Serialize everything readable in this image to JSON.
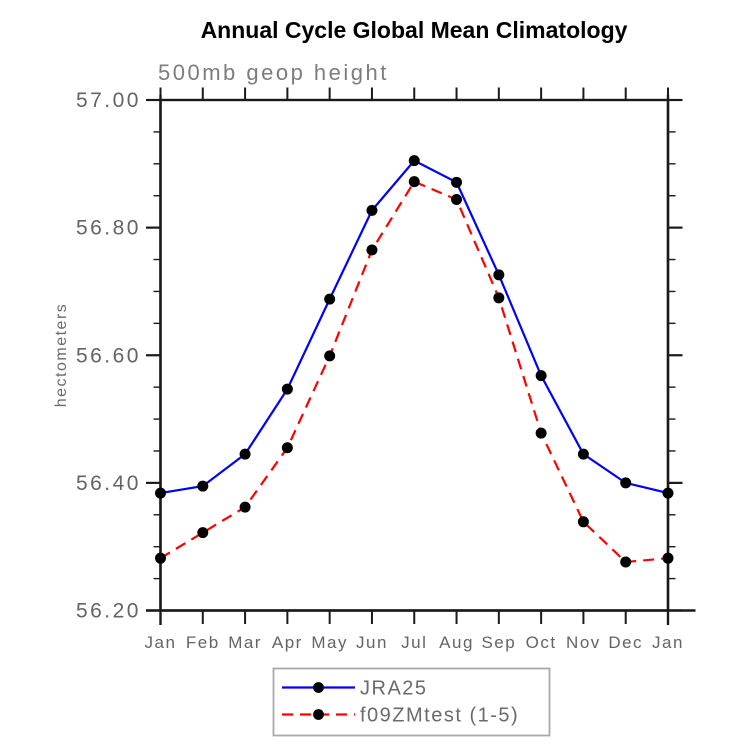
{
  "title": "Annual Cycle Global Mean Climatology",
  "subtitle": "500mb geop height",
  "chart_data": {
    "type": "line",
    "categories": [
      "Jan",
      "Feb",
      "Mar",
      "Apr",
      "May",
      "Jun",
      "Jul",
      "Aug",
      "Sep",
      "Oct",
      "Nov",
      "Dec",
      "Jan"
    ],
    "xlabel": "",
    "ylabel": "hectometers",
    "ylim": [
      56.2,
      57.0
    ],
    "ytick_major_values": [
      57.0,
      56.8,
      56.6,
      56.4,
      56.2
    ],
    "ytick_major_labels": [
      "57.00",
      "56.80",
      "56.60",
      "56.40",
      "56.20"
    ],
    "ytick_minor_step": 0.05,
    "grid": false,
    "legend_position": "bottom-center",
    "series": [
      {
        "name": "JRA25",
        "color": "#0000ff",
        "line_style": "solid",
        "marker": "filled-circle",
        "marker_color": "#000000",
        "values": [
          56.384,
          56.395,
          56.445,
          56.547,
          56.688,
          56.827,
          56.905,
          56.871,
          56.726,
          56.568,
          56.445,
          56.4,
          56.384
        ]
      },
      {
        "name": "f09ZMtest (1-5)",
        "color": "#ff0000",
        "line_style": "dashed",
        "marker": "filled-circle",
        "marker_color": "#000000",
        "values": [
          56.282,
          56.322,
          56.362,
          56.455,
          56.599,
          56.765,
          56.872,
          56.844,
          56.69,
          56.478,
          56.339,
          56.276,
          56.282
        ]
      }
    ]
  },
  "colors": {
    "background": "#ffffff",
    "axis": "#1a1a1a",
    "tick_label": "#646464",
    "subtitle_text": "#7d7d7d",
    "title_text": "#000000",
    "legend_border": "#a9a9a9",
    "series_1": "#0000ff",
    "series_2": "#ff0000",
    "marker": "#000000"
  }
}
